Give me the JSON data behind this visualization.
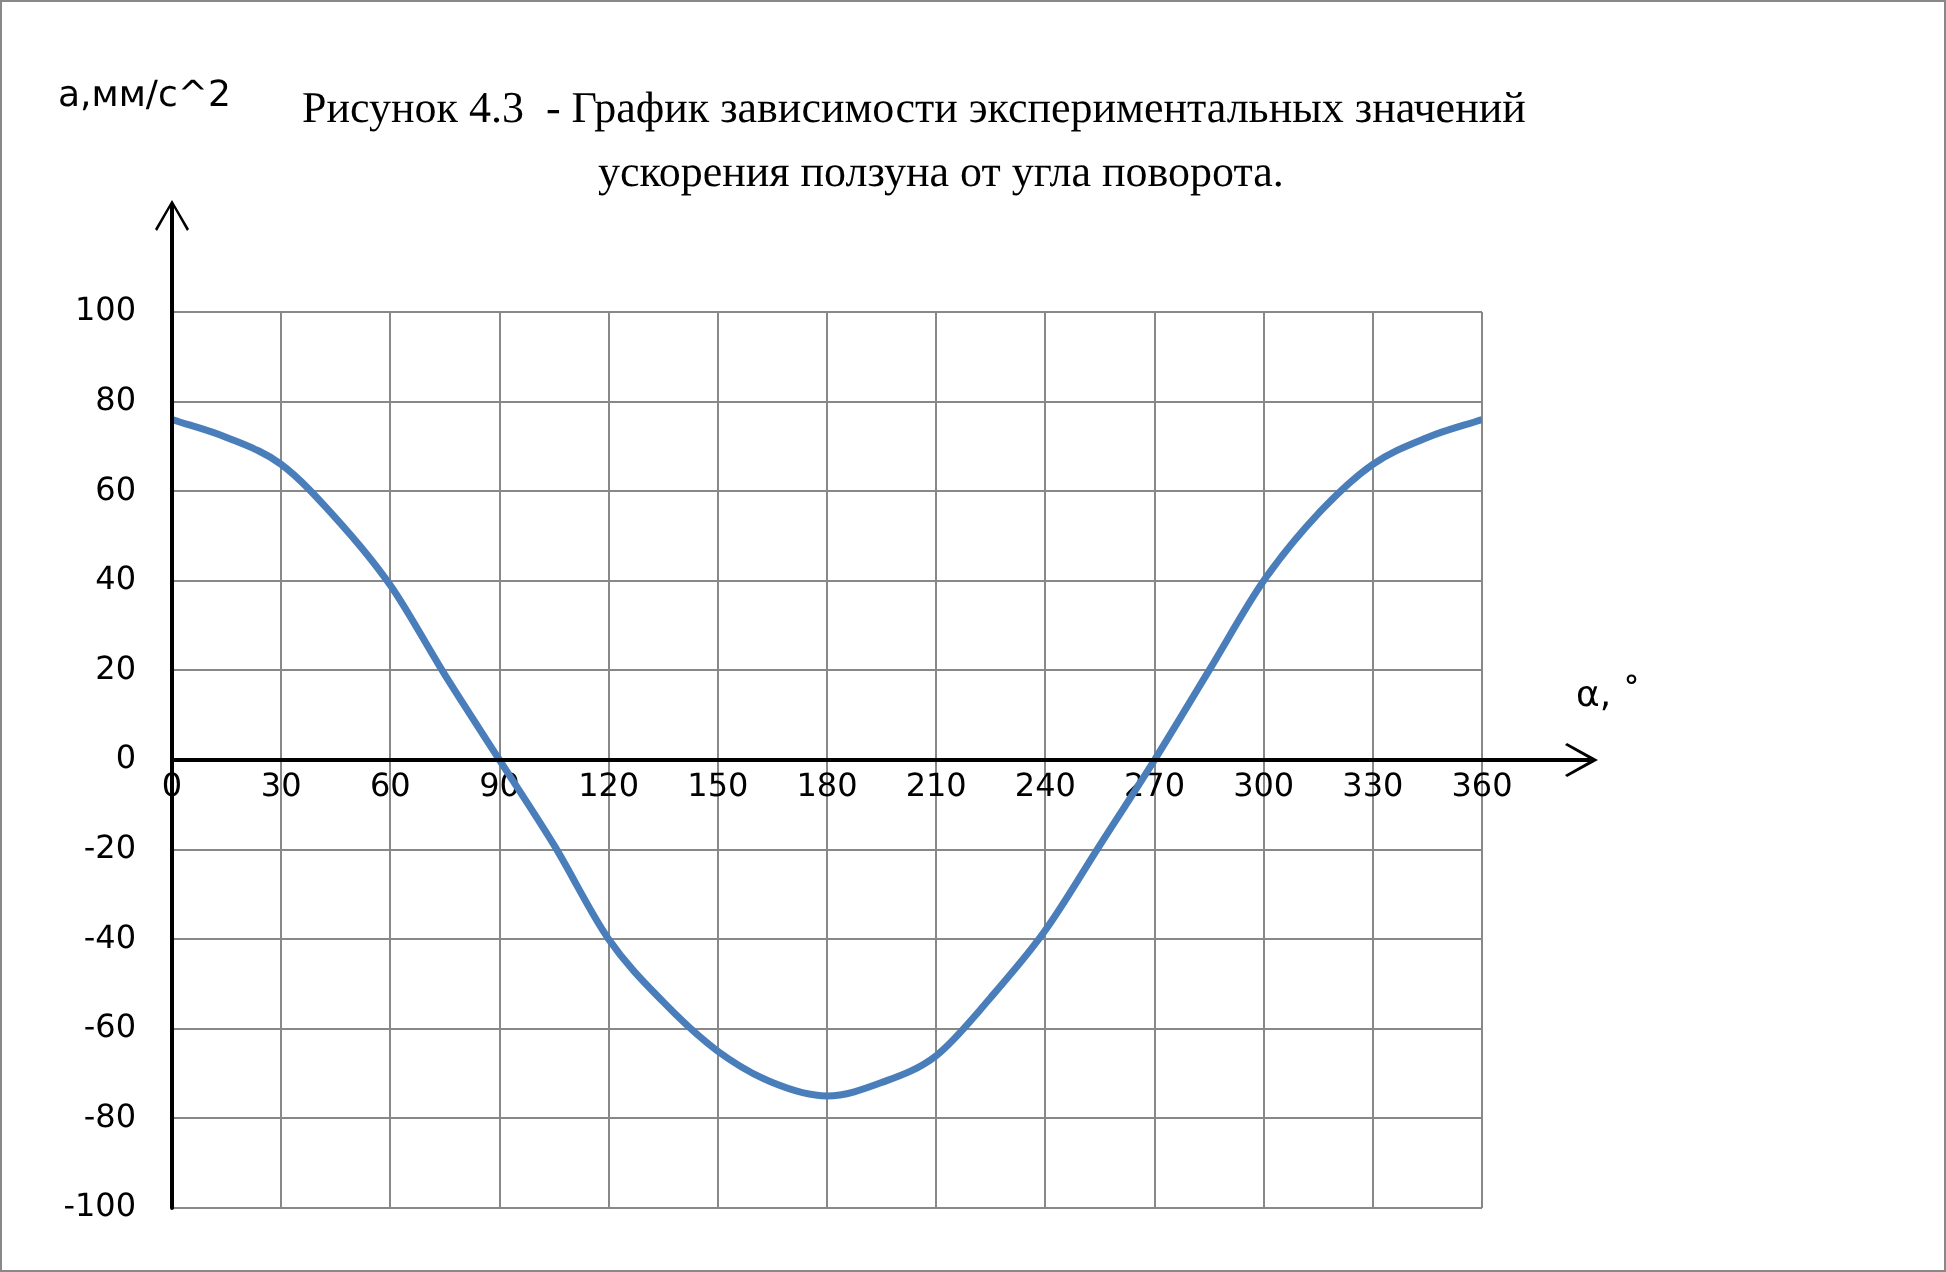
{
  "chart_data": {
    "type": "line",
    "title": "Рисунок 4.3  - График зависимости экспериментальных значений",
    "subtitle": "ускорения ползуна от угла поворота.",
    "xlabel": "α, ˚",
    "ylabel": "а,мм/с^2",
    "x": [
      0,
      15,
      30,
      45,
      60,
      75,
      90,
      105,
      120,
      135,
      150,
      165,
      180,
      195,
      210,
      225,
      240,
      255,
      270,
      285,
      300,
      315,
      330,
      345,
      360
    ],
    "series": [
      {
        "color": "#4a7ebb",
        "values": [
          76,
          72,
          66,
          54,
          39,
          19,
          0,
          -19,
          -40,
          -54,
          -65,
          -72,
          -75,
          -72,
          -66,
          -53,
          -38,
          -19,
          0,
          20,
          40,
          55,
          66,
          72,
          76
        ]
      }
    ],
    "xlim": [
      0,
      360
    ],
    "xticks": [
      0,
      30,
      60,
      90,
      120,
      150,
      180,
      210,
      240,
      270,
      300,
      330,
      360
    ],
    "ylim": [
      -100,
      100
    ],
    "yticks": [
      -100,
      -80,
      -60,
      -40,
      -20,
      0,
      20,
      40,
      60,
      80,
      100
    ],
    "grid": true,
    "legend": false,
    "marker": "none",
    "line_style": "solid"
  }
}
